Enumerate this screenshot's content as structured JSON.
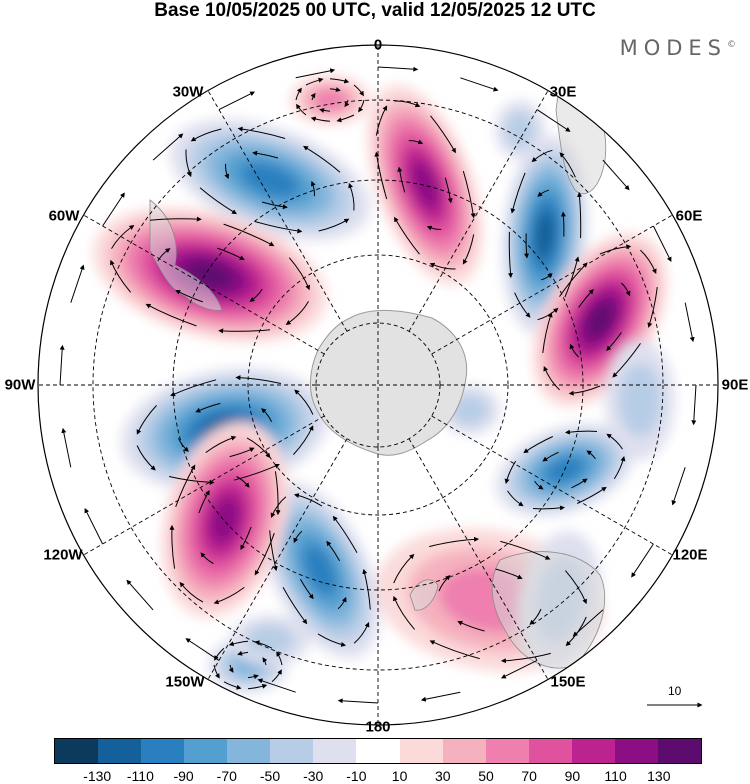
{
  "header": {
    "title": "Base 10/05/2025 00 UTC, valid 12/05/2025 12 UTC",
    "brand": "MODES",
    "brand_mark": "©"
  },
  "map": {
    "projection": "south-polar-stereographic",
    "longitude_labels": {
      "lon_0": "0",
      "lon_30e": "30E",
      "lon_60e": "60E",
      "lon_90e": "90E",
      "lon_120e": "120E",
      "lon_150e": "150E",
      "lon_180": "180",
      "lon_150w": "150W",
      "lon_120w": "120W",
      "lon_90w": "90W",
      "lon_60w": "60W",
      "lon_30w": "30W"
    },
    "reference_vector": "10"
  },
  "legend": {
    "colors": [
      "#0b3a5c",
      "#14609a",
      "#2a80bf",
      "#529fd0",
      "#84b6dc",
      "#b7cde6",
      "#dfe0ef",
      "#ffffff",
      "#fbdada",
      "#f5b1be",
      "#ee7fae",
      "#e0529e",
      "#bd2390",
      "#8c0e85",
      "#5e0b70"
    ],
    "ticks": [
      "-130",
      "-110",
      "-90",
      "-70",
      "-50",
      "-30",
      "-10",
      "10",
      "30",
      "50",
      "70",
      "90",
      "110",
      "130"
    ]
  }
}
